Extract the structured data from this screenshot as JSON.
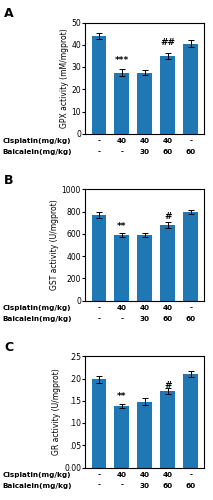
{
  "chart_data": [
    {
      "type": "bar",
      "title": "A",
      "ylabel": "GPX activity (mM/mgprot)",
      "categories": [
        null,
        null,
        null,
        null,
        null
      ],
      "values": [
        44.0,
        27.5,
        27.5,
        35.0,
        40.5
      ],
      "errors": [
        1.5,
        1.5,
        1.2,
        1.5,
        1.5
      ],
      "ylim": [
        0,
        50
      ],
      "yticks": [
        0,
        10,
        20,
        30,
        40,
        50
      ],
      "annotations": [
        {
          "index": 1,
          "text": "***",
          "y": 31.0
        },
        {
          "index": 3,
          "text": "##",
          "y": 39.0
        }
      ],
      "x_rows": [
        {
          "name": "Cisplatin(mg/kg)",
          "labels": [
            "-",
            "40",
            "40",
            "40",
            "-"
          ]
        },
        {
          "name": "Baicalein(mg/kg)",
          "labels": [
            "-",
            "-",
            "30",
            "60",
            "60"
          ]
        }
      ]
    },
    {
      "type": "bar",
      "title": "B",
      "ylabel": "GST activity (U/mgprot)",
      "categories": [
        null,
        null,
        null,
        null,
        null
      ],
      "values": [
        770,
        590,
        590,
        680,
        795
      ],
      "errors": [
        30,
        20,
        20,
        25,
        20
      ],
      "ylim": [
        0,
        1000
      ],
      "yticks": [
        0,
        200,
        400,
        600,
        800,
        1000
      ],
      "annotations": [
        {
          "index": 1,
          "text": "**",
          "y": 630.0
        },
        {
          "index": 3,
          "text": "#",
          "y": 720.0
        }
      ],
      "x_rows": [
        {
          "name": "Cisplatin(mg/kg)",
          "labels": [
            "-",
            "40",
            "40",
            "40",
            "-"
          ]
        },
        {
          "name": "Baicalein(mg/kg)",
          "labels": [
            "-",
            "-",
            "30",
            "60",
            "60"
          ]
        }
      ]
    },
    {
      "type": "bar",
      "title": "C",
      "ylabel": "GR activity (U/mgprot)",
      "categories": [
        null,
        null,
        null,
        null,
        null
      ],
      "values": [
        0.198,
        0.138,
        0.148,
        0.172,
        0.21
      ],
      "errors": [
        0.008,
        0.005,
        0.008,
        0.006,
        0.007
      ],
      "ylim": [
        0.0,
        0.25
      ],
      "yticks": [
        {
          "value": 0.0,
          "label": "0.00"
        },
        {
          "value": 0.05,
          "label": ".05"
        },
        {
          "value": 0.1,
          "label": ".10"
        },
        {
          "value": 0.15,
          "label": ".15"
        },
        {
          "value": 0.2,
          "label": ".20"
        },
        {
          "value": 0.25,
          "label": ".25"
        }
      ],
      "annotations": [
        {
          "index": 1,
          "text": "**",
          "y": 0.15
        },
        {
          "index": 3,
          "text": "#",
          "y": 0.175
        }
      ],
      "x_rows": [
        {
          "name": "Cisplatin(mg/kg)",
          "labels": [
            "-",
            "40",
            "40",
            "40",
            "-"
          ]
        },
        {
          "name": "Baicalein(mg/kg)",
          "labels": [
            "-",
            "-",
            "30",
            "60",
            "60"
          ]
        }
      ]
    }
  ]
}
